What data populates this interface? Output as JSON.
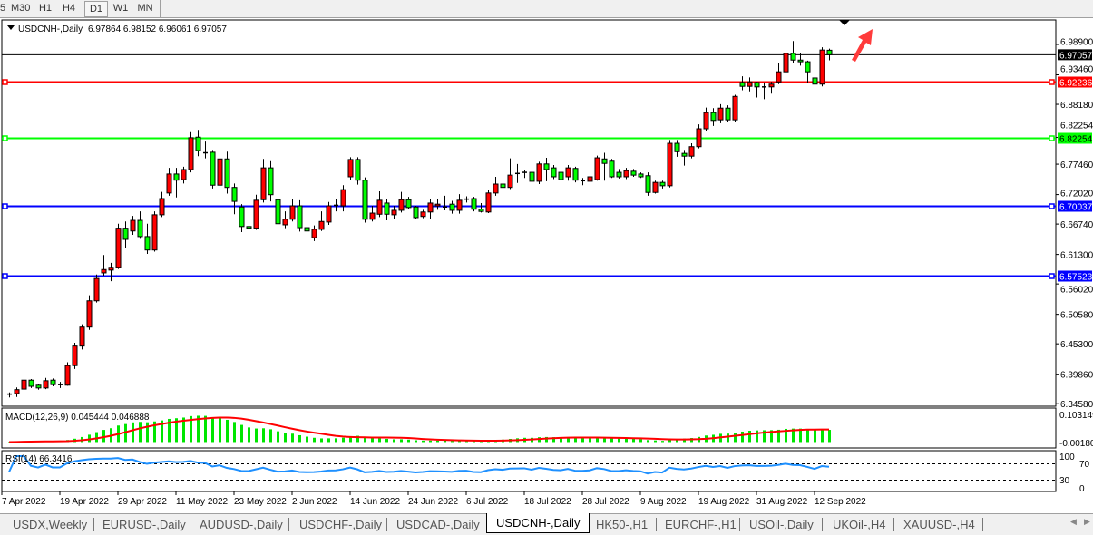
{
  "toolbar": {
    "timeframes": [
      "5",
      "M30",
      "H1",
      "H4",
      "D1",
      "W1",
      "MN"
    ],
    "active": "D1"
  },
  "chart": {
    "symbol_info": "USDCNH-,Daily",
    "ohlc": "6.97864 6.98152 6.96061 6.97057",
    "macd_label": "MACD(12,26,9) 0.045444 0.046888",
    "rsi_label": "RSI(14) 66.3416",
    "macd_scale": [
      "0.103149",
      "-0.00180"
    ],
    "rsi_scale": [
      "100",
      "70",
      "30",
      "0"
    ]
  },
  "colors": {
    "bull_candle": "#ff0000",
    "bear_candle": "#00ff00",
    "macd_histogram": "#00e600",
    "macd_signal": "#ff0000",
    "rsi_line": "#1e90ff",
    "arrow": "#ff3b3b"
  },
  "chart_data": {
    "type": "candlestick",
    "symbol": "USDCNH-",
    "timeframe": "Daily",
    "ylim": [
      6.3458,
      6.989
    ],
    "y_ticks": [
      "6.98900",
      "6.93460",
      "6.88180",
      "6.82254",
      "6.77460",
      "6.72020",
      "6.66740",
      "6.61300",
      "6.56020",
      "6.50580",
      "6.45300",
      "6.39860",
      "6.34580"
    ],
    "x_tick_labels": [
      "7 Apr 2022",
      "19 Apr 2022",
      "29 Apr 2022",
      "11 May 2022",
      "23 May 2022",
      "2 Jun 2022",
      "14 Jun 2022",
      "24 Jun 2022",
      "6 Jul 2022",
      "18 Jul 2022",
      "28 Jul 2022",
      "9 Aug 2022",
      "19 Aug 2022",
      "31 Aug 2022",
      "12 Sep 2022"
    ],
    "current_price": {
      "value": 6.97057,
      "label": "6.97057"
    },
    "levels": [
      {
        "value": 6.92236,
        "label": "6.92236",
        "color": "#ff0000"
      },
      {
        "value": 6.82254,
        "label": "6.82254",
        "color": "#00ff00"
      },
      {
        "value": 6.70037,
        "label": "6.70037",
        "color": "#0000ff"
      },
      {
        "value": 6.57523,
        "label": "6.57523",
        "color": "#0000ff"
      }
    ],
    "candles_ohlc": [
      [
        6.362,
        6.366,
        6.357,
        6.363
      ],
      [
        6.364,
        6.375,
        6.358,
        6.371
      ],
      [
        6.372,
        6.39,
        6.368,
        6.388
      ],
      [
        6.388,
        6.39,
        6.374,
        6.377
      ],
      [
        6.379,
        6.381,
        6.371,
        6.374
      ],
      [
        6.374,
        6.392,
        6.372,
        6.387
      ],
      [
        6.388,
        6.391,
        6.377,
        6.38
      ],
      [
        6.379,
        6.385,
        6.374,
        6.38
      ],
      [
        6.379,
        6.42,
        6.378,
        6.414
      ],
      [
        6.414,
        6.455,
        6.408,
        6.449
      ],
      [
        6.449,
        6.488,
        6.443,
        6.483
      ],
      [
        6.483,
        6.54,
        6.478,
        6.53
      ],
      [
        6.53,
        6.577,
        6.527,
        6.57
      ],
      [
        6.58,
        6.612,
        6.575,
        6.586
      ],
      [
        6.585,
        6.598,
        6.565,
        6.59
      ],
      [
        6.59,
        6.668,
        6.587,
        6.66
      ],
      [
        6.66,
        6.672,
        6.625,
        6.64
      ],
      [
        6.655,
        6.682,
        6.648,
        6.674
      ],
      [
        6.674,
        6.69,
        6.641,
        6.645
      ],
      [
        6.645,
        6.668,
        6.614,
        6.621
      ],
      [
        6.621,
        6.69,
        6.618,
        6.684
      ],
      [
        6.684,
        6.725,
        6.68,
        6.713
      ],
      [
        6.723,
        6.768,
        6.718,
        6.757
      ],
      [
        6.757,
        6.768,
        6.715,
        6.746
      ],
      [
        6.747,
        6.77,
        6.74,
        6.765
      ],
      [
        6.765,
        6.832,
        6.76,
        6.822
      ],
      [
        6.823,
        6.836,
        6.789,
        6.799
      ],
      [
        6.795,
        6.815,
        6.785,
        6.794
      ],
      [
        6.796,
        6.8,
        6.731,
        6.737
      ],
      [
        6.737,
        6.799,
        6.734,
        6.784
      ],
      [
        6.784,
        6.797,
        6.722,
        6.733
      ],
      [
        6.733,
        6.74,
        6.685,
        6.708
      ],
      [
        6.698,
        6.703,
        6.653,
        6.663
      ],
      [
        6.663,
        6.673,
        6.656,
        6.66
      ],
      [
        6.66,
        6.72,
        6.657,
        6.71
      ],
      [
        6.711,
        6.784,
        6.706,
        6.768
      ],
      [
        6.768,
        6.78,
        6.708,
        6.72
      ],
      [
        6.711,
        6.724,
        6.655,
        6.668
      ],
      [
        6.666,
        6.69,
        6.66,
        6.676
      ],
      [
        6.676,
        6.712,
        6.672,
        6.7
      ],
      [
        6.7,
        6.71,
        6.654,
        6.661
      ],
      [
        6.661,
        6.666,
        6.63,
        6.655
      ],
      [
        6.643,
        6.665,
        6.637,
        6.658
      ],
      [
        6.658,
        6.69,
        6.655,
        6.672
      ],
      [
        6.671,
        6.707,
        6.666,
        6.7
      ],
      [
        6.7,
        6.713,
        6.69,
        6.701
      ],
      [
        6.7,
        6.737,
        6.69,
        6.729
      ],
      [
        6.752,
        6.787,
        6.747,
        6.783
      ],
      [
        6.783,
        6.787,
        6.738,
        6.746
      ],
      [
        6.746,
        6.751,
        6.67,
        6.676
      ],
      [
        6.676,
        6.7,
        6.672,
        6.687
      ],
      [
        6.685,
        6.726,
        6.68,
        6.71
      ],
      [
        6.705,
        6.712,
        6.674,
        6.685
      ],
      [
        6.684,
        6.7,
        6.676,
        6.692
      ],
      [
        6.692,
        6.725,
        6.688,
        6.711
      ],
      [
        6.711,
        6.716,
        6.695,
        6.697
      ],
      [
        6.698,
        6.7,
        6.676,
        6.679
      ],
      [
        6.681,
        6.693,
        6.678,
        6.689
      ],
      [
        6.689,
        6.712,
        6.676,
        6.705
      ],
      [
        6.7,
        6.712,
        6.693,
        6.703
      ],
      [
        6.698,
        6.718,
        6.692,
        6.698
      ],
      [
        6.703,
        6.709,
        6.686,
        6.692
      ],
      [
        6.692,
        6.721,
        6.686,
        6.71
      ],
      [
        6.711,
        6.717,
        6.706,
        6.712
      ],
      [
        6.713,
        6.716,
        6.69,
        6.694
      ],
      [
        6.694,
        6.705,
        6.688,
        6.69
      ],
      [
        6.689,
        6.728,
        6.687,
        6.723
      ],
      [
        6.723,
        6.752,
        6.718,
        6.739
      ],
      [
        6.739,
        6.754,
        6.727,
        6.733
      ],
      [
        6.733,
        6.785,
        6.73,
        6.755
      ],
      [
        6.757,
        6.775,
        6.741,
        6.758
      ],
      [
        6.759,
        6.765,
        6.75,
        6.76
      ],
      [
        6.76,
        6.762,
        6.74,
        6.744
      ],
      [
        6.744,
        6.779,
        6.739,
        6.775
      ],
      [
        6.775,
        6.786,
        6.744,
        6.765
      ],
      [
        6.768,
        6.773,
        6.748,
        6.752
      ],
      [
        6.76,
        6.767,
        6.742,
        6.747
      ],
      [
        6.752,
        6.773,
        6.745,
        6.768
      ],
      [
        6.767,
        6.77,
        6.742,
        6.746
      ],
      [
        6.744,
        6.75,
        6.737,
        6.745
      ],
      [
        6.744,
        6.756,
        6.735,
        6.752
      ],
      [
        6.747,
        6.79,
        6.745,
        6.786
      ],
      [
        6.784,
        6.795,
        6.745,
        6.776
      ],
      [
        6.78,
        6.784,
        6.75,
        6.752
      ],
      [
        6.76,
        6.766,
        6.749,
        6.752
      ],
      [
        6.752,
        6.768,
        6.748,
        6.763
      ],
      [
        6.762,
        6.766,
        6.752,
        6.755
      ],
      [
        6.757,
        6.76,
        6.75,
        6.752
      ],
      [
        6.754,
        6.76,
        6.718,
        6.724
      ],
      [
        6.724,
        6.745,
        6.722,
        6.742
      ],
      [
        6.742,
        6.745,
        6.731,
        6.736
      ],
      [
        6.736,
        6.818,
        6.733,
        6.812
      ],
      [
        6.812,
        6.818,
        6.788,
        6.797
      ],
      [
        6.794,
        6.8,
        6.772,
        6.789
      ],
      [
        6.789,
        6.812,
        6.785,
        6.806
      ],
      [
        6.806,
        6.846,
        6.803,
        6.838
      ],
      [
        6.838,
        6.876,
        6.834,
        6.867
      ],
      [
        6.867,
        6.875,
        6.843,
        6.853
      ],
      [
        6.854,
        6.882,
        6.848,
        6.875
      ],
      [
        6.875,
        6.88,
        6.85,
        6.854
      ],
      [
        6.854,
        6.899,
        6.851,
        6.896
      ],
      [
        6.921,
        6.932,
        6.907,
        6.914
      ],
      [
        6.914,
        6.93,
        6.905,
        6.922
      ],
      [
        6.921,
        6.922,
        6.894,
        6.913
      ],
      [
        6.913,
        6.921,
        6.891,
        6.913
      ],
      [
        6.913,
        6.922,
        6.901,
        6.918
      ],
      [
        6.922,
        6.955,
        6.918,
        6.94
      ],
      [
        6.94,
        6.984,
        6.935,
        6.973
      ],
      [
        6.973,
        6.995,
        6.955,
        6.961
      ],
      [
        6.961,
        6.974,
        6.951,
        6.958
      ],
      [
        6.958,
        6.96,
        6.92,
        6.94
      ],
      [
        6.929,
        6.944,
        6.914,
        6.918
      ],
      [
        6.918,
        6.984,
        6.914,
        6.979
      ],
      [
        6.97864,
        6.98152,
        6.96061,
        6.97057
      ]
    ],
    "indicators": [
      {
        "name": "MACD(12,26,9)",
        "main": 0.045444,
        "signal": 0.046888,
        "ylim": [
          -0.0018,
          0.103149
        ]
      },
      {
        "name": "RSI(14)",
        "value": 66.3416,
        "levels": [
          70,
          30
        ],
        "ylim": [
          0,
          100
        ]
      }
    ]
  },
  "tabs": [
    "USDX,Weekly",
    "EURUSD-,Daily",
    "AUDUSD-,Daily",
    "USDCHF-,Daily",
    "USDCAD-,Daily",
    "USDCNH-,Daily",
    "HK50-,H1",
    "EURCHF-,H1",
    "USOil-,Daily",
    "UKOil-,H4",
    "XAUUSD-,H4"
  ],
  "active_tab": "USDCNH-,Daily",
  "scroll": {
    "left": "◀",
    "right": "▶"
  }
}
